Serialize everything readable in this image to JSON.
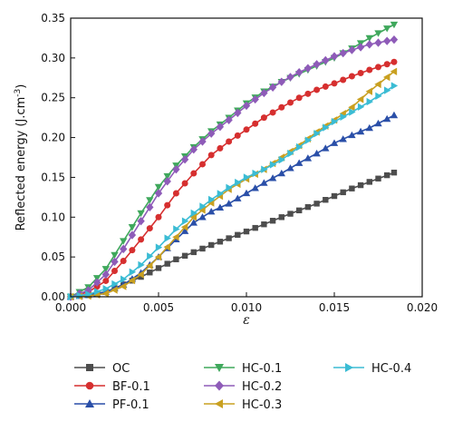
{
  "chart_data": {
    "type": "line",
    "xlabel": "ε",
    "ylabel": "Reflected energy (J.cm",
    "ylabel_exp": "-3",
    "ylabel_close": ")",
    "xlim": [
      0.0,
      0.02
    ],
    "ylim": [
      0.0,
      0.35
    ],
    "xticks": [
      "0.000",
      "0.005",
      "0.010",
      "0.015",
      "0.020"
    ],
    "yticks": [
      "0.00",
      "0.05",
      "0.10",
      "0.15",
      "0.20",
      "0.25",
      "0.30",
      "0.35"
    ],
    "grid": false,
    "legend_position": "bottom",
    "series": [
      {
        "name": "OC",
        "color": "#4d4d4d",
        "marker": "square",
        "points": [
          [
            0.0,
            0.0
          ],
          [
            0.002,
            0.006
          ],
          [
            0.004,
            0.025
          ],
          [
            0.006,
            0.047
          ],
          [
            0.008,
            0.065
          ],
          [
            0.01,
            0.082
          ],
          [
            0.012,
            0.1
          ],
          [
            0.014,
            0.117
          ],
          [
            0.016,
            0.136
          ],
          [
            0.0184,
            0.156
          ]
        ]
      },
      {
        "name": "BF-0.1",
        "color": "#d62f2f",
        "marker": "circle",
        "points": [
          [
            0.0,
            0.0
          ],
          [
            0.001,
            0.006
          ],
          [
            0.002,
            0.02
          ],
          [
            0.003,
            0.045
          ],
          [
            0.004,
            0.072
          ],
          [
            0.005,
            0.1
          ],
          [
            0.006,
            0.13
          ],
          [
            0.007,
            0.155
          ],
          [
            0.008,
            0.178
          ],
          [
            0.009,
            0.195
          ],
          [
            0.01,
            0.21
          ],
          [
            0.011,
            0.225
          ],
          [
            0.012,
            0.238
          ],
          [
            0.013,
            0.25
          ],
          [
            0.014,
            0.26
          ],
          [
            0.015,
            0.268
          ],
          [
            0.016,
            0.277
          ],
          [
            0.017,
            0.285
          ],
          [
            0.0184,
            0.295
          ]
        ]
      },
      {
        "name": "PF-0.1",
        "color": "#2a4fa8",
        "marker": "triangle-up",
        "points": [
          [
            0.0,
            0.0
          ],
          [
            0.001,
            0.002
          ],
          [
            0.002,
            0.006
          ],
          [
            0.003,
            0.015
          ],
          [
            0.004,
            0.03
          ],
          [
            0.005,
            0.05
          ],
          [
            0.006,
            0.072
          ],
          [
            0.007,
            0.093
          ],
          [
            0.008,
            0.107
          ],
          [
            0.009,
            0.117
          ],
          [
            0.01,
            0.13
          ],
          [
            0.011,
            0.143
          ],
          [
            0.012,
            0.155
          ],
          [
            0.013,
            0.168
          ],
          [
            0.014,
            0.18
          ],
          [
            0.015,
            0.193
          ],
          [
            0.016,
            0.203
          ],
          [
            0.017,
            0.212
          ],
          [
            0.0184,
            0.228
          ]
        ]
      },
      {
        "name": "HC-0.1",
        "color": "#3fa85c",
        "marker": "triangle-down",
        "points": [
          [
            0.0,
            0.0
          ],
          [
            0.001,
            0.012
          ],
          [
            0.002,
            0.035
          ],
          [
            0.003,
            0.07
          ],
          [
            0.004,
            0.105
          ],
          [
            0.005,
            0.138
          ],
          [
            0.006,
            0.165
          ],
          [
            0.007,
            0.188
          ],
          [
            0.008,
            0.208
          ],
          [
            0.009,
            0.225
          ],
          [
            0.01,
            0.243
          ],
          [
            0.011,
            0.258
          ],
          [
            0.012,
            0.27
          ],
          [
            0.013,
            0.28
          ],
          [
            0.014,
            0.29
          ],
          [
            0.015,
            0.3
          ],
          [
            0.016,
            0.312
          ],
          [
            0.017,
            0.325
          ],
          [
            0.0184,
            0.342
          ]
        ]
      },
      {
        "name": "HC-0.2",
        "color": "#8e5bb8",
        "marker": "diamond",
        "points": [
          [
            0.0,
            0.0
          ],
          [
            0.001,
            0.008
          ],
          [
            0.002,
            0.028
          ],
          [
            0.003,
            0.06
          ],
          [
            0.004,
            0.095
          ],
          [
            0.005,
            0.13
          ],
          [
            0.006,
            0.16
          ],
          [
            0.007,
            0.185
          ],
          [
            0.008,
            0.205
          ],
          [
            0.009,
            0.222
          ],
          [
            0.01,
            0.24
          ],
          [
            0.011,
            0.256
          ],
          [
            0.012,
            0.27
          ],
          [
            0.013,
            0.282
          ],
          [
            0.014,
            0.292
          ],
          [
            0.015,
            0.302
          ],
          [
            0.016,
            0.31
          ],
          [
            0.017,
            0.317
          ],
          [
            0.0184,
            0.323
          ]
        ]
      },
      {
        "name": "HC-0.3",
        "color": "#c9a020",
        "marker": "triangle-left",
        "points": [
          [
            0.0,
            0.0
          ],
          [
            0.001,
            0.001
          ],
          [
            0.002,
            0.004
          ],
          [
            0.003,
            0.013
          ],
          [
            0.004,
            0.028
          ],
          [
            0.005,
            0.05
          ],
          [
            0.006,
            0.075
          ],
          [
            0.007,
            0.1
          ],
          [
            0.008,
            0.118
          ],
          [
            0.009,
            0.135
          ],
          [
            0.01,
            0.148
          ],
          [
            0.011,
            0.16
          ],
          [
            0.012,
            0.175
          ],
          [
            0.013,
            0.19
          ],
          [
            0.014,
            0.207
          ],
          [
            0.015,
            0.222
          ],
          [
            0.016,
            0.238
          ],
          [
            0.017,
            0.258
          ],
          [
            0.0184,
            0.283
          ]
        ]
      },
      {
        "name": "HC-0.4",
        "color": "#3bbcd4",
        "marker": "triangle-right",
        "points": [
          [
            0.0,
            0.0
          ],
          [
            0.001,
            0.003
          ],
          [
            0.002,
            0.01
          ],
          [
            0.003,
            0.022
          ],
          [
            0.004,
            0.04
          ],
          [
            0.005,
            0.062
          ],
          [
            0.006,
            0.085
          ],
          [
            0.007,
            0.105
          ],
          [
            0.008,
            0.122
          ],
          [
            0.009,
            0.137
          ],
          [
            0.01,
            0.15
          ],
          [
            0.011,
            0.16
          ],
          [
            0.012,
            0.172
          ],
          [
            0.013,
            0.188
          ],
          [
            0.014,
            0.205
          ],
          [
            0.015,
            0.22
          ],
          [
            0.016,
            0.232
          ],
          [
            0.017,
            0.245
          ],
          [
            0.0184,
            0.265
          ]
        ]
      }
    ]
  }
}
